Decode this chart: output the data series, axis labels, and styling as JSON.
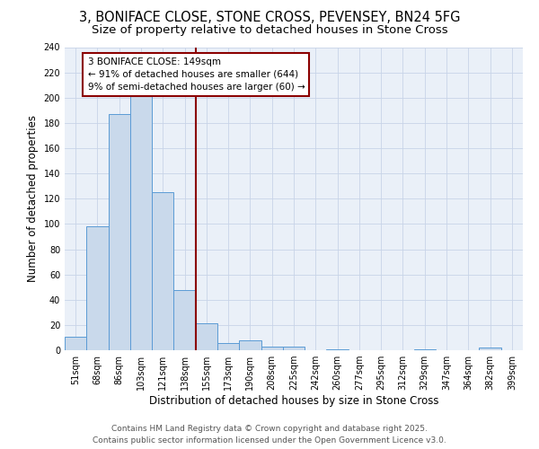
{
  "title_line1": "3, BONIFACE CLOSE, STONE CROSS, PEVENSEY, BN24 5FG",
  "title_line2": "Size of property relative to detached houses in Stone Cross",
  "xlabel": "Distribution of detached houses by size in Stone Cross",
  "ylabel": "Number of detached properties",
  "categories": [
    "51sqm",
    "68sqm",
    "86sqm",
    "103sqm",
    "121sqm",
    "138sqm",
    "155sqm",
    "173sqm",
    "190sqm",
    "208sqm",
    "225sqm",
    "242sqm",
    "260sqm",
    "277sqm",
    "295sqm",
    "312sqm",
    "329sqm",
    "347sqm",
    "364sqm",
    "382sqm",
    "399sqm"
  ],
  "values": [
    11,
    98,
    187,
    201,
    125,
    48,
    21,
    6,
    8,
    3,
    3,
    0,
    1,
    0,
    0,
    0,
    1,
    0,
    0,
    2,
    0
  ],
  "bar_color": "#c9d9eb",
  "bar_edge_color": "#5b9bd5",
  "vline_color": "#8b0000",
  "vline_pos": 5.5,
  "annotation_text": "3 BONIFACE CLOSE: 149sqm\n← 91% of detached houses are smaller (644)\n9% of semi-detached houses are larger (60) →",
  "annotation_box_color": "#8b0000",
  "annotation_text_color": "#000000",
  "annotation_bg": "#ffffff",
  "ylim": [
    0,
    240
  ],
  "yticks": [
    0,
    20,
    40,
    60,
    80,
    100,
    120,
    140,
    160,
    180,
    200,
    220,
    240
  ],
  "grid_color": "#c8d4e8",
  "bg_color": "#eaf0f8",
  "footer_line1": "Contains HM Land Registry data © Crown copyright and database right 2025.",
  "footer_line2": "Contains public sector information licensed under the Open Government Licence v3.0.",
  "title_fontsize": 10.5,
  "subtitle_fontsize": 9.5,
  "axis_label_fontsize": 8.5,
  "tick_fontsize": 7,
  "footer_fontsize": 6.5,
  "annot_fontsize": 7.5
}
